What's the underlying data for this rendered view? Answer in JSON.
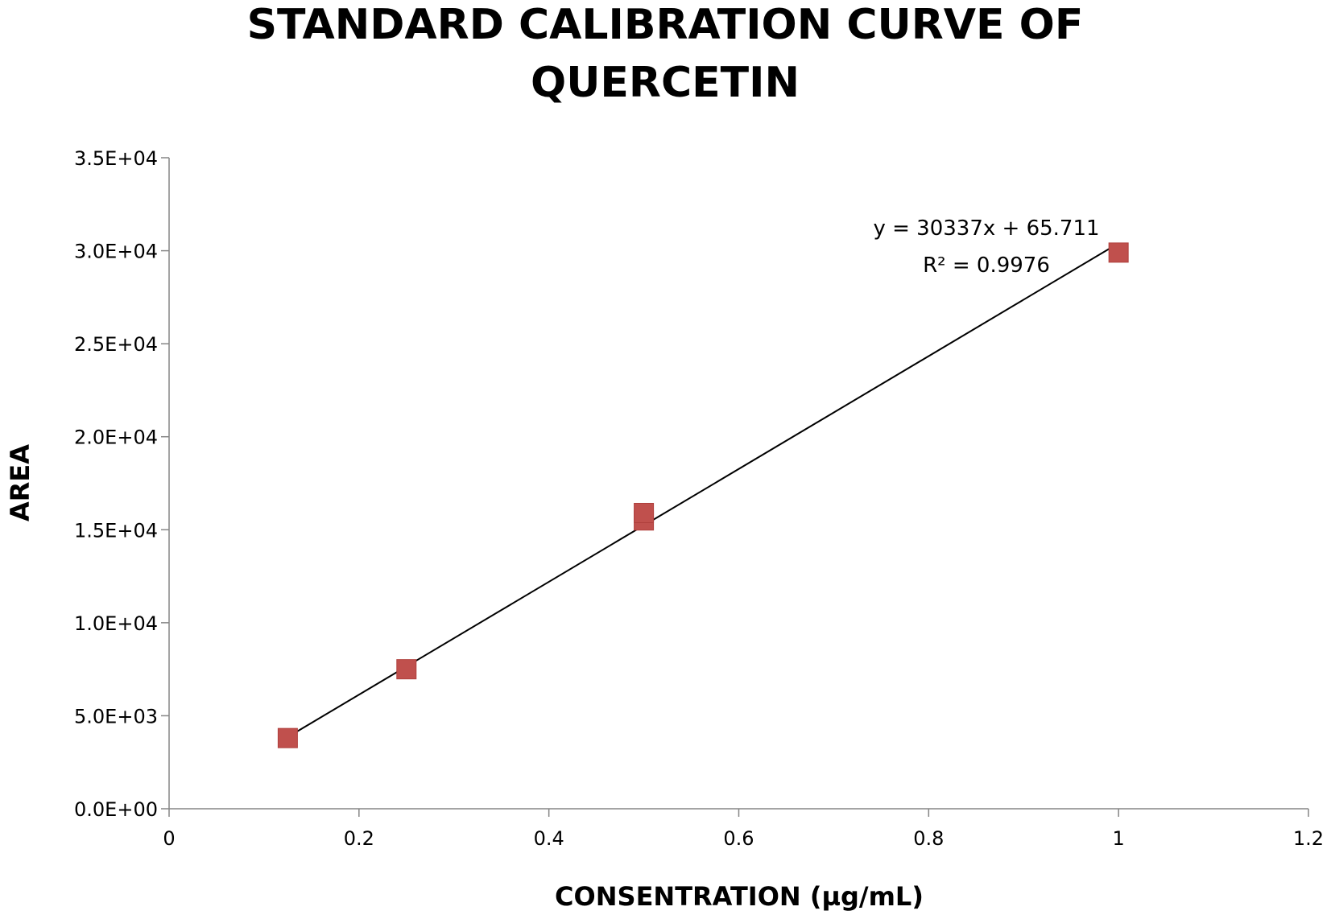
{
  "chart_data": {
    "type": "scatter",
    "title": [
      "STANDARD CALIBRATION CURVE OF",
      "QUERCETIN"
    ],
    "xlabel": "CONSENTRATION  (µg/mL)",
    "ylabel": "AREA",
    "xlim": [
      0,
      1.2
    ],
    "ylim": [
      0,
      35000
    ],
    "x_ticks": [
      0,
      0.2,
      0.4,
      0.6,
      0.8,
      1,
      1.2
    ],
    "x_tick_labels": [
      "0",
      "0.2",
      "0.4",
      "0.6",
      "0.8",
      "1",
      "1.2"
    ],
    "y_ticks": [
      0,
      5000,
      10000,
      15000,
      20000,
      25000,
      30000,
      35000
    ],
    "y_tick_labels": [
      "0.0E+00",
      "5.0E+03",
      "1.0E+04",
      "1.5E+04",
      "2.0E+04",
      "2.5E+04",
      "3.0E+04",
      "3.5E+04"
    ],
    "grid": false,
    "legend": "none",
    "series": [
      {
        "x": [
          0.125,
          0.25,
          0.5,
          0.5,
          1
        ],
        "y": [
          3800,
          7500,
          15500,
          15900,
          29900
        ],
        "marker": "square",
        "color": "#c0504d"
      }
    ],
    "trendline": {
      "type": "linear",
      "slope": 30337,
      "intercept": 65.711,
      "x_range": [
        0.125,
        1
      ],
      "color": "#000000",
      "equation_label": "y = 30337x + 65.711",
      "r2_label": "R² = 0.9976"
    }
  }
}
